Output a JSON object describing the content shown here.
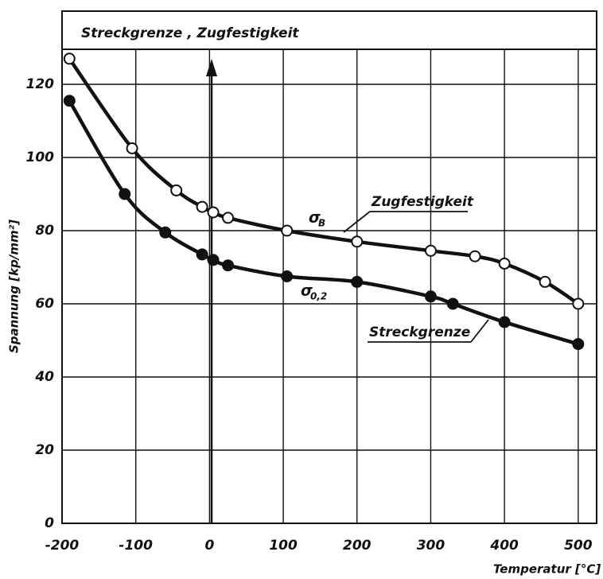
{
  "chart_data": {
    "type": "line",
    "title": "Streckgrenze , Zugfestigkeit",
    "xlabel": "Temperatur [°C]",
    "ylabel": "Spannung [kp/mm²]",
    "xlim": [
      -200,
      525
    ],
    "ylim": [
      0,
      140
    ],
    "xticks": [
      -200,
      -100,
      0,
      100,
      200,
      300,
      400,
      500
    ],
    "yticks": [
      0,
      20,
      40,
      60,
      80,
      100,
      120
    ],
    "grid": true,
    "series": [
      {
        "name": "Zugfestigkeit",
        "symbol": "σ",
        "subscript": "B",
        "color": "#111111",
        "marker": "open",
        "x": [
          -190,
          -105,
          -45,
          -10,
          5,
          25,
          105,
          200,
          300,
          360,
          400,
          455,
          500
        ],
        "values": [
          127,
          102.5,
          91,
          86.5,
          85,
          83.5,
          80,
          77,
          74.5,
          73,
          71,
          66,
          60
        ]
      },
      {
        "name": "Streckgrenze",
        "symbol": "σ",
        "subscript": "0,2",
        "color": "#111111",
        "marker": "filled",
        "x": [
          -190,
          -115,
          -60,
          -10,
          5,
          25,
          105,
          200,
          300,
          330,
          400,
          500
        ],
        "values": [
          115.5,
          90,
          79.5,
          73.5,
          72,
          70.5,
          67.5,
          66,
          62,
          60,
          55,
          49
        ]
      }
    ]
  }
}
